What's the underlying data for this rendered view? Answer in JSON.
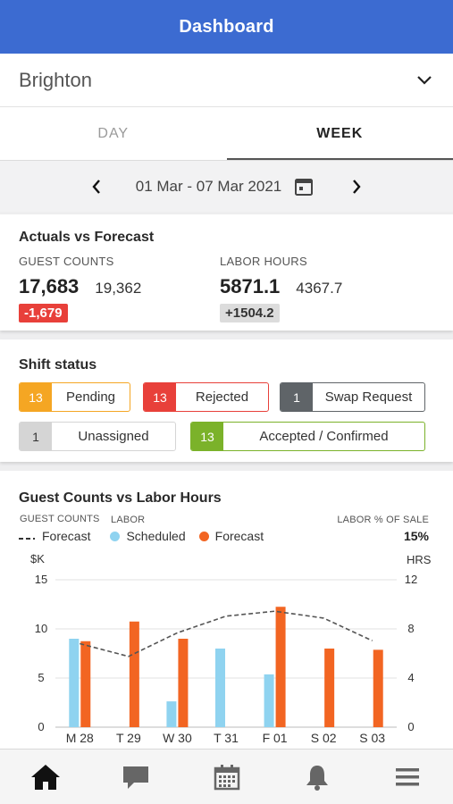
{
  "header": {
    "title": "Dashboard"
  },
  "location": {
    "name": "Brighton"
  },
  "tabs": [
    {
      "label": "DAY",
      "active": false
    },
    {
      "label": "WEEK",
      "active": true
    }
  ],
  "date_range": "01 Mar - 07 Mar 2021",
  "actuals_vs_forecast": {
    "title": "Actuals vs Forecast",
    "guest_counts": {
      "label": "GUEST COUNTS",
      "actual": "17,683",
      "forecast": "19,362",
      "diff": "-1,679"
    },
    "labor_hours": {
      "label": "LABOR HOURS",
      "actual": "5871.1",
      "forecast": "4367.7",
      "diff": "+1504.2"
    }
  },
  "shift_status": {
    "title": "Shift status",
    "chips": [
      {
        "count": "13",
        "label": "Pending",
        "color": "#f5a623"
      },
      {
        "count": "13",
        "label": "Rejected",
        "color": "#e8403a"
      },
      {
        "count": "1",
        "label": "Swap Request",
        "color": "#5f6468"
      },
      {
        "count": "1",
        "label": "Unassigned",
        "color": "#d5d5d5"
      },
      {
        "count": "13",
        "label": "Accepted / Confirmed",
        "color": "#7bb22a"
      }
    ]
  },
  "guest_vs_labor": {
    "title": "Guest Counts vs Labor Hours",
    "legend": {
      "guest_counts_group": "GUEST COUNTS",
      "labor_group": "LABOR",
      "forecast_dashed": "Forecast",
      "scheduled": "Scheduled",
      "labor_forecast": "Forecast",
      "labor_pct_label": "LABOR % OF SALE",
      "labor_pct_value": "15%"
    }
  },
  "chart_data": {
    "type": "bar",
    "categories": [
      "M 28",
      "T 29",
      "W 30",
      "T 31",
      "F 01",
      "S 02",
      "S 03"
    ],
    "left_axis": {
      "unit": "$K",
      "ticks": [
        "15",
        "10",
        "5",
        "0"
      ],
      "range": [
        0,
        15
      ]
    },
    "right_axis": {
      "unit": "HRS",
      "ticks": [
        "12",
        "8",
        "4",
        "0"
      ],
      "range": [
        0,
        12
      ]
    },
    "series": [
      {
        "name": "Scheduled",
        "axis": "right",
        "color": "#8fd3f0",
        "values": [
          7.2,
          0,
          2.1,
          6.4,
          4.3,
          0,
          0
        ]
      },
      {
        "name": "Forecast",
        "axis": "right",
        "color": "#f26522",
        "values": [
          7.0,
          8.6,
          7.2,
          0,
          9.8,
          6.4,
          6.3
        ]
      },
      {
        "name": "Forecast",
        "axis": "left",
        "style": "dashed",
        "color": "#555555",
        "values": [
          8.5,
          7.2,
          9.6,
          11.3,
          11.8,
          11.1,
          8.8
        ]
      }
    ],
    "grid": true
  },
  "bottom_nav": [
    {
      "icon": "home-icon",
      "active": true
    },
    {
      "icon": "chat-icon",
      "active": false
    },
    {
      "icon": "calendar-icon",
      "active": false
    },
    {
      "icon": "bell-icon",
      "active": false
    },
    {
      "icon": "menu-icon",
      "active": false
    }
  ]
}
